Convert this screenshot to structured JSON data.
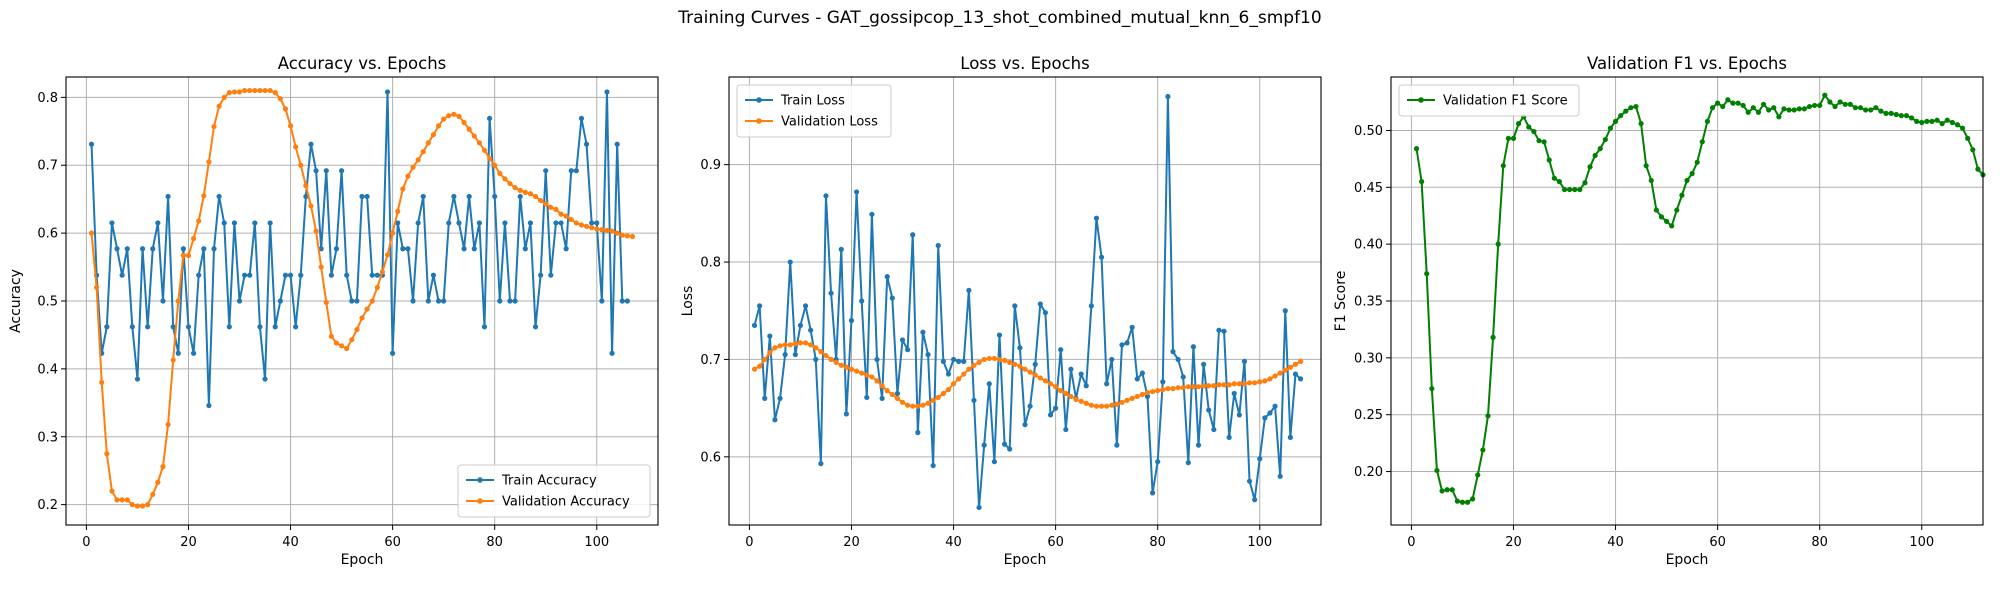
{
  "figure": {
    "title": "Training Curves - GAT_gossipcop_13_shot_combined_mutual_knn_6_smpf10"
  },
  "chart_data": [
    {
      "type": "line",
      "title": "Accuracy vs. Epochs",
      "xlabel": "Epoch",
      "ylabel": "Accuracy",
      "xlim": [
        -4,
        112
      ],
      "ylim": [
        0.17,
        0.83
      ],
      "xticks": [
        0,
        20,
        40,
        60,
        80,
        100
      ],
      "yticks": [
        0.2,
        0.3,
        0.4,
        0.5,
        0.6,
        0.7,
        0.8
      ],
      "tick_format": "1",
      "grid": true,
      "legend_position": "lower-right",
      "series": [
        {
          "name": "Train Accuracy",
          "color": "#1f77b4",
          "x_start": 1,
          "values": [
            0.731,
            0.538,
            0.423,
            0.462,
            0.615,
            0.577,
            0.538,
            0.577,
            0.462,
            0.385,
            0.577,
            0.462,
            0.577,
            0.615,
            0.5,
            0.654,
            0.462,
            0.423,
            0.577,
            0.462,
            0.423,
            0.538,
            0.577,
            0.346,
            0.577,
            0.654,
            0.615,
            0.462,
            0.615,
            0.5,
            0.538,
            0.538,
            0.615,
            0.462,
            0.385,
            0.615,
            0.462,
            0.5,
            0.538,
            0.538,
            0.462,
            0.538,
            0.654,
            0.731,
            0.692,
            0.577,
            0.692,
            0.538,
            0.577,
            0.692,
            0.538,
            0.5,
            0.5,
            0.654,
            0.654,
            0.538,
            0.538,
            0.538,
            0.808,
            0.423,
            0.615,
            0.577,
            0.577,
            0.5,
            0.615,
            0.654,
            0.5,
            0.538,
            0.5,
            0.5,
            0.615,
            0.654,
            0.615,
            0.577,
            0.654,
            0.577,
            0.615,
            0.462,
            0.769,
            0.654,
            0.5,
            0.615,
            0.5,
            0.5,
            0.654,
            0.577,
            0.615,
            0.462,
            0.538,
            0.692,
            0.538,
            0.615,
            0.615,
            0.577,
            0.692,
            0.692,
            0.769,
            0.731,
            0.615,
            0.615,
            0.5,
            0.808,
            0.423,
            0.731,
            0.5,
            0.5
          ]
        },
        {
          "name": "Validation Accuracy",
          "color": "#ff7f0e",
          "x_start": 1,
          "values": [
            0.6,
            0.52,
            0.38,
            0.275,
            0.22,
            0.207,
            0.207,
            0.207,
            0.2,
            0.198,
            0.198,
            0.2,
            0.215,
            0.233,
            0.256,
            0.318,
            0.413,
            0.5,
            0.567,
            0.567,
            0.592,
            0.618,
            0.655,
            0.705,
            0.757,
            0.787,
            0.8,
            0.807,
            0.808,
            0.808,
            0.81,
            0.81,
            0.81,
            0.81,
            0.81,
            0.81,
            0.807,
            0.798,
            0.783,
            0.758,
            0.727,
            0.7,
            0.67,
            0.64,
            0.603,
            0.55,
            0.498,
            0.448,
            0.438,
            0.434,
            0.43,
            0.443,
            0.458,
            0.475,
            0.488,
            0.5,
            0.52,
            0.543,
            0.568,
            0.6,
            0.632,
            0.665,
            0.684,
            0.697,
            0.708,
            0.72,
            0.733,
            0.745,
            0.758,
            0.768,
            0.773,
            0.775,
            0.772,
            0.763,
            0.753,
            0.743,
            0.733,
            0.722,
            0.71,
            0.7,
            0.688,
            0.68,
            0.673,
            0.667,
            0.663,
            0.66,
            0.658,
            0.654,
            0.648,
            0.643,
            0.638,
            0.635,
            0.628,
            0.625,
            0.62,
            0.615,
            0.612,
            0.61,
            0.608,
            0.606,
            0.605,
            0.604,
            0.603,
            0.6,
            0.597,
            0.596,
            0.595
          ]
        }
      ]
    },
    {
      "type": "line",
      "title": "Loss vs. Epochs",
      "xlabel": "Epoch",
      "ylabel": "Loss",
      "xlim": [
        -4,
        112
      ],
      "ylim": [
        0.53,
        0.99
      ],
      "xticks": [
        0,
        20,
        40,
        60,
        80,
        100
      ],
      "yticks": [
        0.6,
        0.7,
        0.8,
        0.9
      ],
      "tick_format": "1",
      "grid": true,
      "legend_position": "upper-left",
      "series": [
        {
          "name": "Train Loss",
          "color": "#1f77b4",
          "x_start": 1,
          "values": [
            0.735,
            0.755,
            0.66,
            0.724,
            0.638,
            0.66,
            0.705,
            0.8,
            0.705,
            0.735,
            0.755,
            0.73,
            0.7,
            0.593,
            0.868,
            0.768,
            0.7,
            0.813,
            0.644,
            0.74,
            0.872,
            0.76,
            0.661,
            0.849,
            0.7,
            0.66,
            0.785,
            0.763,
            0.665,
            0.72,
            0.71,
            0.828,
            0.625,
            0.728,
            0.705,
            0.591,
            0.817,
            0.698,
            0.685,
            0.7,
            0.698,
            0.698,
            0.771,
            0.658,
            0.548,
            0.612,
            0.675,
            0.595,
            0.725,
            0.613,
            0.608,
            0.755,
            0.712,
            0.633,
            0.652,
            0.695,
            0.757,
            0.748,
            0.643,
            0.65,
            0.71,
            0.628,
            0.69,
            0.66,
            0.685,
            0.673,
            0.755,
            0.845,
            0.805,
            0.675,
            0.7,
            0.612,
            0.715,
            0.717,
            0.733,
            0.68,
            0.686,
            0.662,
            0.563,
            0.595,
            0.677,
            0.97,
            0.708,
            0.7,
            0.682,
            0.594,
            0.713,
            0.612,
            0.695,
            0.648,
            0.628,
            0.73,
            0.729,
            0.62,
            0.665,
            0.643,
            0.698,
            0.575,
            0.556,
            0.598,
            0.64,
            0.645,
            0.652,
            0.58,
            0.75,
            0.62,
            0.685,
            0.68
          ]
        },
        {
          "name": "Validation Loss",
          "color": "#ff7f0e",
          "x_start": 1,
          "values": [
            0.69,
            0.693,
            0.7,
            0.707,
            0.712,
            0.714,
            0.715,
            0.715,
            0.716,
            0.717,
            0.717,
            0.715,
            0.712,
            0.708,
            0.704,
            0.7,
            0.697,
            0.694,
            0.692,
            0.69,
            0.688,
            0.686,
            0.684,
            0.682,
            0.678,
            0.673,
            0.668,
            0.664,
            0.66,
            0.656,
            0.653,
            0.652,
            0.652,
            0.653,
            0.655,
            0.658,
            0.661,
            0.665,
            0.669,
            0.675,
            0.68,
            0.685,
            0.69,
            0.694,
            0.697,
            0.7,
            0.701,
            0.701,
            0.7,
            0.699,
            0.697,
            0.695,
            0.693,
            0.69,
            0.687,
            0.684,
            0.681,
            0.678,
            0.675,
            0.672,
            0.668,
            0.665,
            0.662,
            0.659,
            0.657,
            0.655,
            0.653,
            0.652,
            0.652,
            0.652,
            0.653,
            0.654,
            0.656,
            0.658,
            0.66,
            0.662,
            0.664,
            0.666,
            0.667,
            0.668,
            0.669,
            0.67,
            0.67,
            0.671,
            0.671,
            0.672,
            0.672,
            0.672,
            0.673,
            0.673,
            0.673,
            0.674,
            0.674,
            0.674,
            0.675,
            0.675,
            0.675,
            0.676,
            0.676,
            0.677,
            0.678,
            0.68,
            0.683,
            0.686,
            0.689,
            0.692,
            0.695,
            0.698
          ]
        }
      ]
    },
    {
      "type": "line",
      "title": "Validation F1 vs. Epochs",
      "xlabel": "Epoch",
      "ylabel": "F1 Score",
      "xlim": [
        -4,
        112
      ],
      "ylim": [
        0.153,
        0.547
      ],
      "xticks": [
        0,
        20,
        40,
        60,
        80,
        100
      ],
      "yticks": [
        0.2,
        0.25,
        0.3,
        0.35,
        0.4,
        0.45,
        0.5
      ],
      "tick_format": "2",
      "grid": true,
      "legend_position": "upper-left",
      "series": [
        {
          "name": "Validation F1 Score",
          "color": "#008000",
          "x_start": 1,
          "values": [
            0.484,
            0.455,
            0.374,
            0.273,
            0.201,
            0.183,
            0.184,
            0.184,
            0.174,
            0.173,
            0.173,
            0.176,
            0.197,
            0.219,
            0.249,
            0.318,
            0.4,
            0.469,
            0.493,
            0.493,
            0.506,
            0.512,
            0.503,
            0.499,
            0.491,
            0.49,
            0.474,
            0.458,
            0.455,
            0.448,
            0.448,
            0.448,
            0.448,
            0.454,
            0.468,
            0.478,
            0.484,
            0.492,
            0.502,
            0.508,
            0.513,
            0.517,
            0.52,
            0.521,
            0.506,
            0.469,
            0.456,
            0.43,
            0.424,
            0.42,
            0.416,
            0.43,
            0.443,
            0.456,
            0.462,
            0.472,
            0.49,
            0.508,
            0.52,
            0.524,
            0.521,
            0.527,
            0.524,
            0.524,
            0.522,
            0.516,
            0.52,
            0.516,
            0.523,
            0.518,
            0.52,
            0.512,
            0.519,
            0.518,
            0.518,
            0.519,
            0.519,
            0.521,
            0.522,
            0.522,
            0.531,
            0.525,
            0.521,
            0.525,
            0.523,
            0.523,
            0.52,
            0.52,
            0.518,
            0.518,
            0.52,
            0.517,
            0.515,
            0.515,
            0.514,
            0.513,
            0.513,
            0.511,
            0.508,
            0.507,
            0.508,
            0.508,
            0.509,
            0.506,
            0.509,
            0.507,
            0.505,
            0.502,
            0.493,
            0.483,
            0.466,
            0.461
          ]
        }
      ]
    }
  ]
}
